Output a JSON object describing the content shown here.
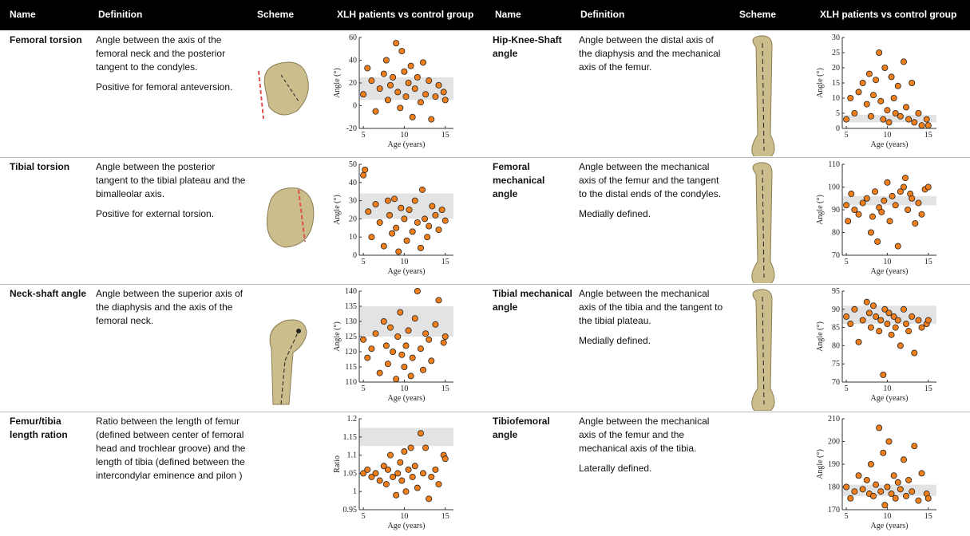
{
  "header": [
    "Name",
    "Definition",
    "Scheme",
    "XLH patients vs control group",
    "Name",
    "Definition",
    "Scheme",
    "XLH patients vs control group"
  ],
  "rows": [
    [
      {
        "name": "Femoral torsion",
        "definition": [
          "Angle between the axis of the femoral neck and the posterior tangent to the condyles.",
          "Positive for femoral anteversion."
        ],
        "chart": {
          "type": "scatter",
          "x_label": "Age (years)",
          "y_label": "Angle (°)",
          "xlim": [
            4.5,
            16
          ],
          "xticks": [
            5,
            10,
            15
          ],
          "ylim": [
            -20,
            60
          ],
          "yticks": [
            -20,
            0,
            20,
            40,
            60
          ],
          "reference_range": [
            5,
            25
          ],
          "color": "#f07f1b",
          "x": [
            5,
            5.5,
            6,
            6.5,
            7,
            7.5,
            7.8,
            8,
            8.3,
            8.6,
            9,
            9.2,
            9.5,
            9.7,
            10,
            10.2,
            10.5,
            10.8,
            11,
            11.3,
            11.6,
            12,
            12.3,
            12.6,
            13,
            13.3,
            13.8,
            14.2,
            14.8,
            15
          ],
          "y": [
            10,
            33,
            22,
            -5,
            15,
            28,
            40,
            5,
            18,
            25,
            55,
            12,
            -2,
            48,
            30,
            8,
            20,
            35,
            -10,
            15,
            25,
            3,
            38,
            10,
            22,
            -12,
            8,
            18,
            12,
            5
          ]
        }
      },
      {
        "name": "Hip-Knee-Shaft angle",
        "definition": [
          "Angle between the distal axis of the diaphysis and the mechanical axis of the femur."
        ],
        "chart": {
          "type": "scatter",
          "x_label": "Age (years)",
          "y_label": "Angle (°)",
          "xlim": [
            4.5,
            16
          ],
          "xticks": [
            5,
            10,
            15
          ],
          "ylim": [
            0,
            30
          ],
          "yticks": [
            0,
            5,
            10,
            15,
            20,
            25,
            30
          ],
          "reference_range": [
            2,
            4.5
          ],
          "color": "#f07f1b",
          "x": [
            5,
            5.5,
            6,
            6.5,
            7,
            7.5,
            7.8,
            8,
            8.3,
            8.6,
            9,
            9.2,
            9.5,
            9.7,
            10,
            10.2,
            10.5,
            10.8,
            11,
            11.3,
            11.6,
            12,
            12.3,
            12.6,
            13,
            13.3,
            13.8,
            14.2,
            14.8,
            15
          ],
          "y": [
            3,
            10,
            5,
            12,
            15,
            8,
            18,
            4,
            11,
            16,
            25,
            9,
            3,
            20,
            6,
            2,
            17,
            10,
            5,
            14,
            4,
            22,
            7,
            3,
            15,
            2,
            5,
            1,
            3,
            1
          ]
        }
      }
    ],
    [
      {
        "name": "Tibial torsion",
        "definition": [
          "Angle between the posterior tangent to the tibial plateau and the bimalleolar axis.",
          "Positive for external torsion."
        ],
        "chart": {
          "type": "scatter",
          "x_label": "Age (years)",
          "y_label": "Angle (°)",
          "xlim": [
            4.5,
            16
          ],
          "xticks": [
            5,
            10,
            15
          ],
          "ylim": [
            0,
            50
          ],
          "yticks": [
            0,
            10,
            20,
            30,
            40,
            50
          ],
          "reference_range": [
            20,
            34
          ],
          "color": "#f07f1b",
          "x": [
            5,
            5.2,
            5.6,
            6,
            6.5,
            7,
            7.5,
            8,
            8.2,
            8.5,
            8.8,
            9,
            9.3,
            9.6,
            10,
            10.3,
            10.6,
            11,
            11.3,
            11.6,
            12,
            12.2,
            12.5,
            12.8,
            13,
            13.4,
            13.8,
            14.2,
            14.6,
            15
          ],
          "y": [
            44,
            47,
            24,
            10,
            28,
            18,
            5,
            30,
            22,
            12,
            31,
            15,
            2,
            26,
            20,
            8,
            25,
            13,
            30,
            18,
            4,
            36,
            20,
            10,
            16,
            27,
            22,
            14,
            25,
            19
          ]
        }
      },
      {
        "name": "Femoral mechanical angle",
        "definition": [
          "Angle between the mechanical axis of the femur and the tangent to the distal ends of the condyles.",
          "Medially defined."
        ],
        "chart": {
          "type": "scatter",
          "x_label": "Age (years)",
          "y_label": "Angle (°)",
          "xlim": [
            4.5,
            16
          ],
          "xticks": [
            5,
            10,
            15
          ],
          "ylim": [
            70,
            110
          ],
          "yticks": [
            70,
            80,
            90,
            100,
            110
          ],
          "reference_range": [
            92,
            96
          ],
          "color": "#f07f1b",
          "x": [
            5,
            5.2,
            5.6,
            6,
            6.5,
            7,
            7.5,
            8,
            8.2,
            8.5,
            8.8,
            9,
            9.3,
            9.6,
            10,
            10.3,
            10.6,
            11,
            11.3,
            11.6,
            12,
            12.2,
            12.5,
            12.8,
            13,
            13.4,
            13.8,
            14.2,
            14.6,
            15
          ],
          "y": [
            92,
            85,
            97,
            90,
            88,
            93,
            95,
            80,
            87,
            98,
            76,
            91,
            89,
            94,
            102,
            85,
            96,
            92,
            74,
            98,
            100,
            104,
            90,
            97,
            95,
            84,
            93,
            88,
            99,
            100
          ]
        }
      }
    ],
    [
      {
        "name": "Neck-shaft angle",
        "definition": [
          "Angle between the superior axis of the diaphysis and the axis of the femoral neck."
        ],
        "chart": {
          "type": "scatter",
          "x_label": "Age (years)",
          "y_label": "Angle (°)",
          "xlim": [
            4.5,
            16
          ],
          "xticks": [
            5,
            10,
            15
          ],
          "ylim": [
            110,
            140
          ],
          "yticks": [
            110,
            115,
            120,
            125,
            130,
            135,
            140
          ],
          "reference_range": [
            125,
            135
          ],
          "color": "#f07f1b",
          "x": [
            5,
            5.5,
            6,
            6.5,
            7,
            7.5,
            7.8,
            8,
            8.3,
            8.6,
            9,
            9.2,
            9.5,
            9.7,
            10,
            10.2,
            10.5,
            10.8,
            11,
            11.3,
            11.6,
            12,
            12.3,
            12.6,
            13,
            13.3,
            13.8,
            14.2,
            14.8,
            15
          ],
          "y": [
            124,
            118,
            121,
            126,
            113,
            130,
            122,
            116,
            128,
            120,
            111,
            125,
            133,
            119,
            115,
            122,
            127,
            112,
            118,
            131,
            140,
            121,
            114,
            126,
            124,
            117,
            129,
            137,
            123,
            125
          ]
        }
      },
      {
        "name": "Tibial mechanical angle",
        "definition": [
          "Angle between the mechanical axis of the tibia and the tangent to the tibial plateau.",
          "Medially defined."
        ],
        "chart": {
          "type": "scatter",
          "x_label": "Age (years)",
          "y_label": "Angle (°)",
          "xlim": [
            4.5,
            16
          ],
          "xticks": [
            5,
            10,
            15
          ],
          "ylim": [
            70,
            95
          ],
          "yticks": [
            70,
            75,
            80,
            85,
            90,
            95
          ],
          "reference_range": [
            86,
            91
          ],
          "color": "#f07f1b",
          "x": [
            5,
            5.5,
            6,
            6.5,
            7,
            7.5,
            7.8,
            8,
            8.3,
            8.6,
            9,
            9.2,
            9.5,
            9.7,
            10,
            10.2,
            10.5,
            10.8,
            11,
            11.3,
            11.6,
            12,
            12.3,
            12.6,
            13,
            13.3,
            13.8,
            14.2,
            14.8,
            15
          ],
          "y": [
            88,
            86,
            90,
            81,
            87,
            92,
            89,
            85,
            91,
            88,
            84,
            87,
            72,
            90,
            86,
            89,
            83,
            88,
            85,
            87,
            80,
            90,
            86,
            84,
            88,
            78,
            87,
            85,
            86,
            87
          ]
        }
      }
    ],
    [
      {
        "name": "Femur/tibia length ration",
        "definition": [
          "Ratio between the length of femur (defined between center of femoral head and trochlear groove) and the length of tibia (defined between the intercondylar eminence and pilon )"
        ],
        "chart": {
          "type": "scatter",
          "x_label": "Age (years)",
          "y_label": "Ratio",
          "xlim": [
            4.5,
            16
          ],
          "xticks": [
            5,
            10,
            15
          ],
          "ylim": [
            0.95,
            1.2
          ],
          "yticks": [
            0.95,
            1,
            1.05,
            1.1,
            1.15,
            1.2
          ],
          "reference_range": [
            1.125,
            1.175
          ],
          "color": "#f07f1b",
          "x": [
            5,
            5.5,
            6,
            6.5,
            7,
            7.5,
            7.8,
            8,
            8.3,
            8.6,
            9,
            9.2,
            9.5,
            9.7,
            10,
            10.2,
            10.5,
            10.8,
            11,
            11.3,
            11.6,
            12,
            12.3,
            12.6,
            13,
            13.3,
            13.8,
            14.2,
            14.8,
            15
          ],
          "y": [
            1.05,
            1.06,
            1.04,
            1.05,
            1.03,
            1.07,
            1.02,
            1.06,
            1.1,
            1.04,
            0.99,
            1.05,
            1.08,
            1.03,
            1.11,
            1,
            1.06,
            1.12,
            1.04,
            1.07,
            1.01,
            1.16,
            1.05,
            1.12,
            0.98,
            1.04,
            1.06,
            1.02,
            1.1,
            1.09
          ]
        }
      },
      {
        "name": "Tibiofemoral angle",
        "definition": [
          "Angle between the mechanical axis of the femur and the mechanical axis of the tibia.",
          "Laterally defined."
        ],
        "chart": {
          "type": "scatter",
          "x_label": "Age (years)",
          "y_label": "Angle (°)",
          "xlim": [
            4.5,
            16
          ],
          "xticks": [
            5,
            10,
            15
          ],
          "ylim": [
            170,
            210
          ],
          "yticks": [
            170,
            180,
            190,
            200,
            210
          ],
          "reference_range": [
            176,
            181
          ],
          "color": "#f07f1b",
          "x": [
            5,
            5.5,
            6,
            6.5,
            7,
            7.5,
            7.8,
            8,
            8.3,
            8.6,
            9,
            9.2,
            9.5,
            9.7,
            10,
            10.2,
            10.5,
            10.8,
            11,
            11.3,
            11.6,
            12,
            12.3,
            12.6,
            13,
            13.3,
            13.8,
            14.2,
            14.8,
            15
          ],
          "y": [
            180,
            175,
            178,
            185,
            179,
            183,
            177,
            190,
            176,
            181,
            206,
            178,
            195,
            172,
            180,
            200,
            177,
            185,
            175,
            182,
            179,
            192,
            176,
            183,
            178,
            198,
            174,
            186,
            177,
            175
          ]
        }
      }
    ]
  ]
}
